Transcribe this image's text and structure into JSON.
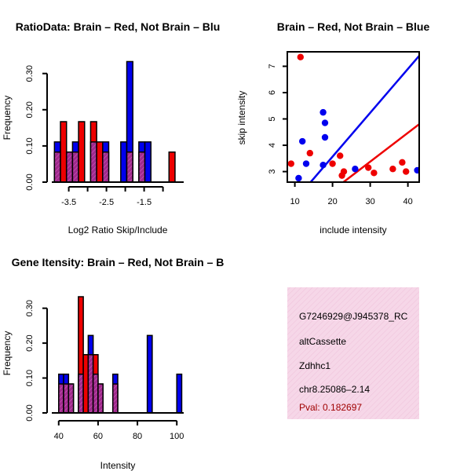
{
  "colors": {
    "red": "#ee0000",
    "blue": "#0000ee",
    "overlap": "#a02a8c",
    "info_bg": "#f6d7e8",
    "pval": "#a00000"
  },
  "chart_data": [
    {
      "type": "bar",
      "name": "ratio-histogram",
      "title": "RatioData: Brain – Red, Not Brain – Blu",
      "xlabel": "Log2 Ratio Skip/Include",
      "ylabel": "Frequency",
      "xlim": [
        -3.95,
        -0.45
      ],
      "ylim": [
        0,
        0.36
      ],
      "xticks": [
        -3.5,
        -3.0,
        -2.5,
        -2.0,
        -1.5,
        -1.0
      ],
      "xtick_labels": [
        "-3.5",
        "",
        "-2.5",
        "",
        "-1.5",
        ""
      ],
      "yticks": [
        0.0,
        0.1,
        0.2,
        0.3
      ],
      "ytick_labels": [
        "0.00",
        "0.10",
        "0.20",
        "0.30"
      ],
      "bin_width": 0.16,
      "bins": [
        -3.88,
        -3.72,
        -3.56,
        -3.4,
        -3.24,
        -3.08,
        -2.92,
        -2.76,
        -2.6,
        -2.44,
        -2.28,
        -2.12,
        -1.96,
        -1.8,
        -1.64,
        -1.48,
        -1.32,
        -1.16,
        -1.0,
        -0.84
      ],
      "series": [
        {
          "name": "Not Brain",
          "color": "blue",
          "values": [
            0.111,
            0,
            0.083,
            0.111,
            0,
            0,
            0.111,
            0,
            0.111,
            0,
            0,
            0.111,
            0.333,
            0,
            0.111,
            0.111,
            0,
            0,
            0,
            0
          ]
        },
        {
          "name": "Brain",
          "color": "red",
          "values": [
            0.083,
            0.167,
            0.083,
            0.083,
            0.167,
            0,
            0.167,
            0.111,
            0.083,
            0,
            0,
            0,
            0.083,
            0,
            0.083,
            0,
            0,
            0,
            0,
            0.083
          ]
        }
      ]
    },
    {
      "type": "scatter",
      "name": "skip-include-scatter",
      "title": "Brain – Red, Not Brain – Blue",
      "xlabel": "include intensity",
      "ylabel": "skip intensity",
      "xlim": [
        8,
        43
      ],
      "ylim": [
        2.6,
        7.55
      ],
      "xticks": [
        10,
        20,
        30,
        40
      ],
      "xtick_labels": [
        "10",
        "20",
        "30",
        "40"
      ],
      "yticks": [
        3,
        4,
        5,
        6,
        7
      ],
      "ytick_labels": [
        "3",
        "4",
        "5",
        "6",
        "7"
      ],
      "series": [
        {
          "name": "Brain",
          "color": "red",
          "points": [
            [
              9,
              3.3
            ],
            [
              11.5,
              7.35
            ],
            [
              14,
              3.7
            ],
            [
              20,
              3.3
            ],
            [
              22,
              3.6
            ],
            [
              23,
              3.0
            ],
            [
              22.5,
              2.85
            ],
            [
              29.5,
              3.15
            ],
            [
              31,
              2.95
            ],
            [
              36,
              3.1
            ],
            [
              38.5,
              3.35
            ],
            [
              39.5,
              3.0
            ]
          ],
          "fit": [
            [
              22.9,
              2.6
            ],
            [
              43,
              4.8
            ]
          ]
        },
        {
          "name": "Not Brain",
          "color": "blue",
          "points": [
            [
              11,
              2.75
            ],
            [
              12,
              4.15
            ],
            [
              13,
              3.3
            ],
            [
              17.5,
              5.25
            ],
            [
              18,
              4.85
            ],
            [
              18,
              4.3
            ],
            [
              17.5,
              3.25
            ],
            [
              26,
              3.1
            ],
            [
              42.5,
              3.05
            ]
          ],
          "fit": [
            [
              14.2,
              2.6
            ],
            [
              43,
              7.4
            ]
          ]
        }
      ]
    },
    {
      "type": "bar",
      "name": "intensity-histogram",
      "title": "Gene Itensity: Brain – Red, Not Brain – B",
      "xlabel": "Intensity",
      "ylabel": "Frequency",
      "xlim": [
        36.5,
        103.5
      ],
      "ylim": [
        0,
        0.36
      ],
      "xticks": [
        40,
        60,
        80,
        100
      ],
      "xtick_labels": [
        "40",
        "60",
        "80",
        "100"
      ],
      "yticks": [
        0.0,
        0.1,
        0.2,
        0.3
      ],
      "ytick_labels": [
        "0.00",
        "0.10",
        "0.20",
        "0.30"
      ],
      "bin_width": 2.5,
      "bins": [
        40,
        42.5,
        45,
        47.5,
        50,
        52.5,
        55,
        57.5,
        60,
        62.5,
        65,
        67.5,
        70,
        72.5,
        75,
        77.5,
        80,
        82.5,
        85,
        87.5,
        90,
        92.5,
        95,
        97.5,
        100
      ],
      "series": [
        {
          "name": "Not Brain",
          "color": "blue",
          "values": [
            0.111,
            0.111,
            0.083,
            0,
            0.111,
            0,
            0.222,
            0.111,
            0.083,
            0,
            0,
            0.111,
            0,
            0,
            0,
            0,
            0,
            0,
            0.222,
            0,
            0,
            0,
            0,
            0,
            0.111
          ]
        },
        {
          "name": "Brain",
          "color": "red",
          "values": [
            0.083,
            0.083,
            0.083,
            0,
            0.333,
            0.167,
            0.167,
            0.167,
            0.083,
            0,
            0,
            0.083,
            0,
            0,
            0,
            0,
            0,
            0,
            0,
            0,
            0,
            0,
            0,
            0,
            0
          ]
        }
      ]
    }
  ],
  "info_panel": {
    "event_id": "G7246929@J945378_RC",
    "event_type": "altCassette",
    "gene": "Zdhhc1",
    "location": "chr8.25086–2.14",
    "pval": "Pval: 0.182697"
  }
}
